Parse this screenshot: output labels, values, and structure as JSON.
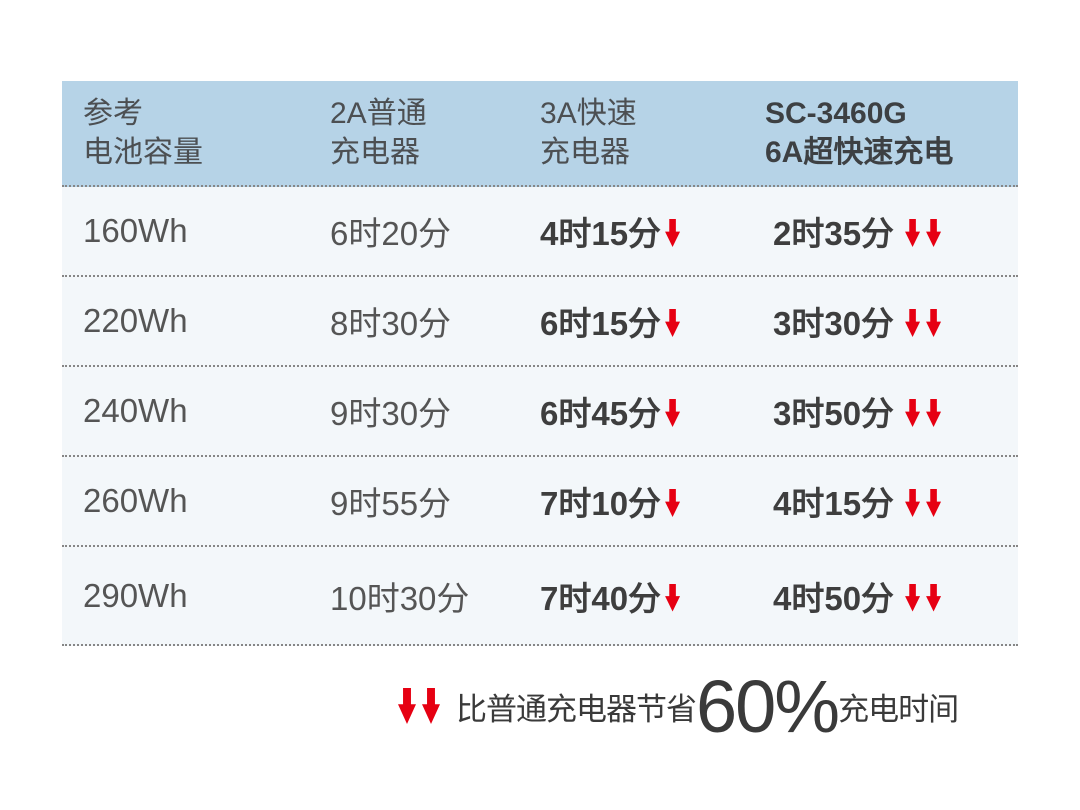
{
  "theme": {
    "page_bg": "#ffffff",
    "header_bg": "#b6d3e7",
    "row_bg": "#f3f7fa",
    "divider_color": "#868686",
    "text_color": "#555555",
    "emphasis_text_color": "#3e3e3e",
    "arrow_red": "#e60012"
  },
  "icons": {
    "down_arrow": "↓",
    "double_down_arrow": "↓↓"
  },
  "table": {
    "header": {
      "col1": {
        "line1": "参考",
        "line2": "电池容量"
      },
      "col2": {
        "line1": "2A普通",
        "line2": "充电器"
      },
      "col3": {
        "line1": "3A快速",
        "line2": "充电器"
      },
      "col4": {
        "line1": "SC-3460G",
        "line2": "6A超快速充电"
      }
    },
    "rows": [
      {
        "capacity": "160Wh",
        "charger_2a": "6时20分",
        "charger_3a": "4时15分",
        "charger_6a": "2时35分"
      },
      {
        "capacity": "220Wh",
        "charger_2a": "8时30分",
        "charger_3a": "6时15分",
        "charger_6a": "3时30分"
      },
      {
        "capacity": "240Wh",
        "charger_2a": "9时30分",
        "charger_3a": "6时45分",
        "charger_6a": "3时50分"
      },
      {
        "capacity": "260Wh",
        "charger_2a": "9时55分",
        "charger_3a": "7时10分",
        "charger_6a": "4时15分"
      },
      {
        "capacity": "290Wh",
        "charger_2a": "10时30分",
        "charger_3a": "7时40分",
        "charger_6a": "4时50分"
      }
    ]
  },
  "footnote": {
    "prefix": "比普通充电器节省",
    "highlight": "60%",
    "suffix": "充电时间"
  },
  "chart_data": {
    "type": "table",
    "title": "",
    "columns": [
      "参考电池容量",
      "2A普通充电器",
      "3A快速充电器",
      "SC-3460G 6A超快速充电"
    ],
    "rows": [
      [
        "160Wh",
        "6时20分",
        "4时15分 ↓",
        "2时35分 ↓↓"
      ],
      [
        "220Wh",
        "8时30分",
        "6时15分 ↓",
        "3时30分 ↓↓"
      ],
      [
        "240Wh",
        "9时30分",
        "6时45分 ↓",
        "3时50分 ↓↓"
      ],
      [
        "260Wh",
        "9时55分",
        "7时10分 ↓",
        "4时15分 ↓↓"
      ],
      [
        "290Wh",
        "10时30分",
        "7时40分 ↓",
        "4时50分 ↓↓"
      ]
    ],
    "annotations": [
      "↓↓ 比普通充电器节省60%充电时间"
    ],
    "legend_position": "bottom",
    "grid": "horizontal-dotted"
  }
}
